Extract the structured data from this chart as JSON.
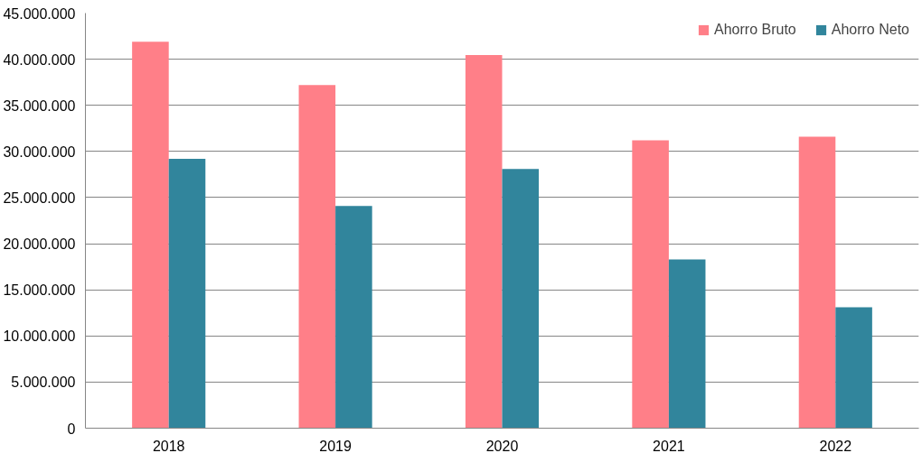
{
  "chart_data": {
    "type": "bar",
    "categories": [
      "2018",
      "2019",
      "2020",
      "2021",
      "2022"
    ],
    "series": [
      {
        "name": "Ahorro Bruto",
        "color": "#ff7f88",
        "values": [
          41900000,
          37200000,
          40450000,
          31200000,
          31600000
        ]
      },
      {
        "name": "Ahorro Neto",
        "color": "#31859c",
        "values": [
          29200000,
          24100000,
          28100000,
          18300000,
          13100000
        ]
      }
    ],
    "ylim": [
      0,
      45000000
    ],
    "yticks": [
      {
        "value": 0,
        "label": "0"
      },
      {
        "value": 5000000,
        "label": "5.000.000"
      },
      {
        "value": 10000000,
        "label": "10.000.000"
      },
      {
        "value": 15000000,
        "label": "15.000.000"
      },
      {
        "value": 20000000,
        "label": "20.000.000"
      },
      {
        "value": 25000000,
        "label": "25.000.000"
      },
      {
        "value": 30000000,
        "label": "30.000.000"
      },
      {
        "value": 35000000,
        "label": "35.000.000"
      },
      {
        "value": 40000000,
        "label": "40.000.000"
      },
      {
        "value": 45000000,
        "label": "45.000.000"
      }
    ],
    "grid": "y",
    "legend": "top right"
  }
}
